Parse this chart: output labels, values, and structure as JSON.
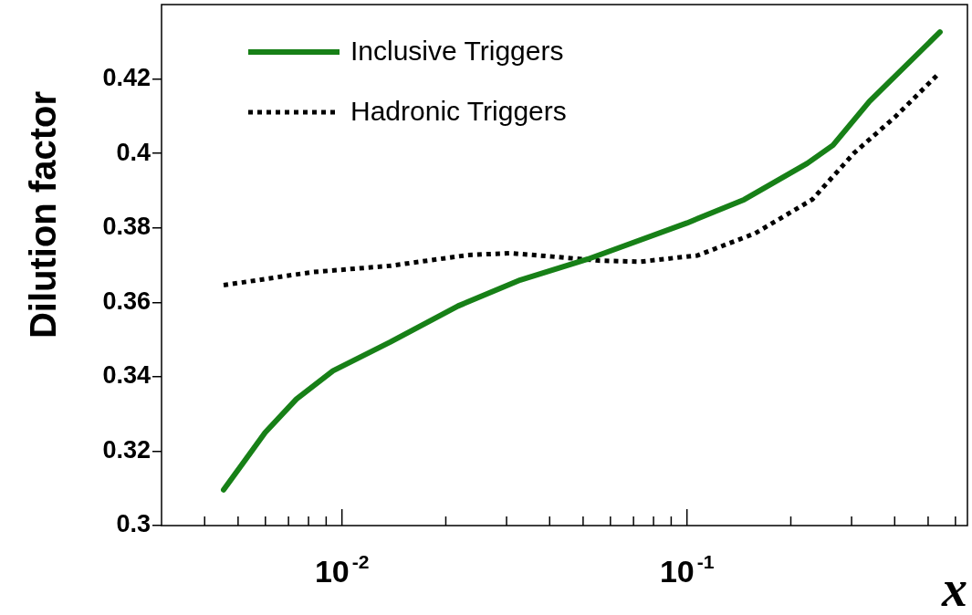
{
  "chart_data": {
    "type": "line",
    "xlabel": "x",
    "ylabel": "Dilution factor",
    "log": "x",
    "xlim": [
      0.003,
      0.65
    ],
    "ylim": [
      0.3,
      0.44
    ],
    "xticks": [
      {
        "value": 0.004,
        "label": null
      },
      {
        "value": 0.005,
        "label": null
      },
      {
        "value": 0.006,
        "label": null
      },
      {
        "value": 0.007,
        "label": null
      },
      {
        "value": 0.008,
        "label": null
      },
      {
        "value": 0.009,
        "label": null
      },
      {
        "value": 0.01,
        "label": "10$^{-2}$"
      },
      {
        "value": 0.02,
        "label": null
      },
      {
        "value": 0.03,
        "label": null
      },
      {
        "value": 0.04,
        "label": null
      },
      {
        "value": 0.05,
        "label": null
      },
      {
        "value": 0.06,
        "label": null
      },
      {
        "value": 0.07,
        "label": null
      },
      {
        "value": 0.08,
        "label": null
      },
      {
        "value": 0.09,
        "label": null
      },
      {
        "value": 0.1,
        "label": "10$^{-1}$"
      },
      {
        "value": 0.2,
        "label": null
      },
      {
        "value": 0.3,
        "label": null
      },
      {
        "value": 0.4,
        "label": null
      },
      {
        "value": 0.5,
        "label": null
      },
      {
        "value": 0.6,
        "label": null
      }
    ],
    "yticks": [
      0.3,
      0.32,
      0.34,
      0.36,
      0.38,
      0.4,
      0.42
    ],
    "grid": false,
    "legend": "top left",
    "marker": "none",
    "series": [
      {
        "name": "Inclusive Triggers",
        "color": "#178017",
        "line_style": "solid",
        "x": [
          0.00454,
          0.00599,
          0.00738,
          0.00942,
          0.0138,
          0.0217,
          0.0329,
          0.0516,
          0.1,
          0.1466,
          0.223,
          0.265,
          0.338,
          0.541
        ],
        "values": [
          0.3096,
          0.325,
          0.334,
          0.3416,
          0.3493,
          0.359,
          0.366,
          0.3716,
          0.3813,
          0.3876,
          0.3973,
          0.4022,
          0.414,
          0.4326
        ]
      },
      {
        "name": "Hadronic Triggers",
        "color": "#000000",
        "line_style": "dotted",
        "x": [
          0.00454,
          0.00819,
          0.0138,
          0.0232,
          0.0307,
          0.0406,
          0.0554,
          0.0732,
          0.1074,
          0.1574,
          0.2307,
          0.305,
          0.402,
          0.531
        ],
        "values": [
          0.3646,
          0.3681,
          0.3698,
          0.3727,
          0.3732,
          0.3723,
          0.3712,
          0.3709,
          0.3726,
          0.3785,
          0.3876,
          0.4001,
          0.4099,
          0.421
        ]
      }
    ]
  }
}
